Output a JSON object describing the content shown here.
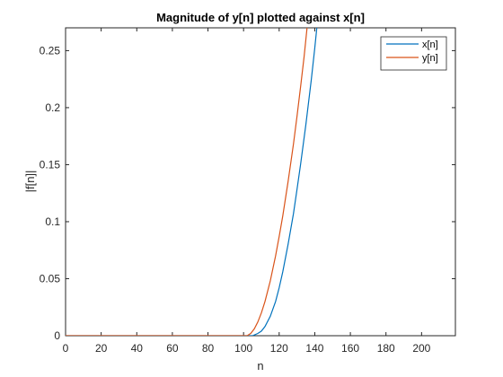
{
  "chart_data": {
    "type": "line",
    "title": "Magnitude of y[n] plotted against x[n]",
    "xlabel": "n",
    "ylabel": "|f[n]|",
    "xlim": [
      0,
      219
    ],
    "ylim": [
      0,
      0.27
    ],
    "xticks": [
      "0",
      "20",
      "40",
      "60",
      "80",
      "100",
      "120",
      "140",
      "160",
      "180",
      "200"
    ],
    "xtick_values": [
      0,
      20,
      40,
      60,
      80,
      100,
      120,
      140,
      160,
      180,
      200
    ],
    "yticks": [
      "0",
      "0.05",
      "0.1",
      "0.15",
      "0.2",
      "0.25"
    ],
    "ytick_values": [
      0,
      0.05,
      0.1,
      0.15,
      0.2,
      0.25
    ],
    "grid": false,
    "legend_position": "top-right",
    "series": [
      {
        "name": "x[n]",
        "color": "#0072BD",
        "x": [
          0,
          20,
          40,
          60,
          80,
          100,
          105,
          108,
          110,
          112,
          115,
          118,
          120,
          122,
          125,
          128,
          130,
          132,
          135,
          138,
          140,
          142
        ],
        "y": [
          0,
          0,
          0,
          0,
          0,
          0,
          0.0,
          0.002,
          0.004,
          0.008,
          0.017,
          0.03,
          0.042,
          0.056,
          0.08,
          0.107,
          0.128,
          0.15,
          0.185,
          0.224,
          0.252,
          0.283
        ]
      },
      {
        "name": "y[n]",
        "color": "#D95319",
        "x": [
          0,
          20,
          40,
          60,
          80,
          100,
          102,
          104,
          106,
          108,
          110,
          112,
          115,
          118,
          120,
          122,
          125,
          128,
          130,
          132,
          134,
          136
        ],
        "y": [
          0,
          0,
          0,
          0,
          0,
          0,
          0.0,
          0.002,
          0.006,
          0.012,
          0.02,
          0.03,
          0.048,
          0.07,
          0.087,
          0.105,
          0.135,
          0.168,
          0.192,
          0.218,
          0.245,
          0.275
        ]
      }
    ]
  }
}
